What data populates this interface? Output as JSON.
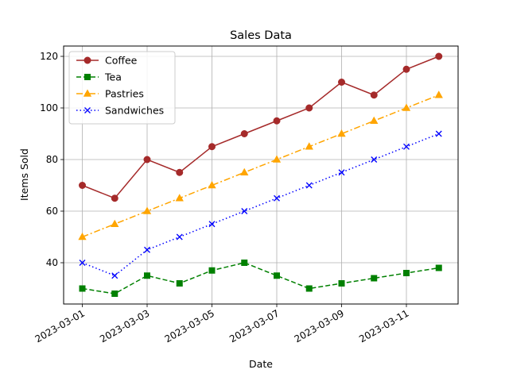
{
  "chart_data": {
    "type": "line",
    "title": "Sales Data",
    "xlabel": "Date",
    "ylabel": "Items Sold",
    "x": [
      "2023-03-01",
      "2023-03-02",
      "2023-03-03",
      "2023-03-04",
      "2023-03-05",
      "2023-03-06",
      "2023-03-07",
      "2023-03-08",
      "2023-03-09",
      "2023-03-10",
      "2023-03-11",
      "2023-03-12"
    ],
    "x_tick_labels": [
      "2023-03-01",
      "2023-03-03",
      "2023-03-05",
      "2023-03-07",
      "2023-03-09",
      "2023-03-11"
    ],
    "y_ticks": [
      40,
      60,
      80,
      100,
      120
    ],
    "ylim": [
      24,
      124
    ],
    "grid": true,
    "legend_position": "top-left",
    "series": [
      {
        "name": "Coffee",
        "color": "#a52a2a",
        "marker": "circle",
        "dash": "solid",
        "values": [
          70,
          65,
          80,
          75,
          85,
          90,
          95,
          100,
          110,
          105,
          115,
          120
        ]
      },
      {
        "name": "Tea",
        "color": "#008000",
        "marker": "square",
        "dash": "dashed",
        "values": [
          30,
          28,
          35,
          32,
          37,
          40,
          35,
          30,
          32,
          34,
          36,
          38
        ]
      },
      {
        "name": "Pastries",
        "color": "#ffa500",
        "marker": "triangle",
        "dash": "dashdot",
        "values": [
          50,
          55,
          60,
          65,
          70,
          75,
          80,
          85,
          90,
          95,
          100,
          105
        ]
      },
      {
        "name": "Sandwiches",
        "color": "#0000ff",
        "marker": "x",
        "dash": "dotted",
        "values": [
          40,
          35,
          45,
          50,
          55,
          60,
          65,
          70,
          75,
          80,
          85,
          90
        ]
      }
    ]
  }
}
